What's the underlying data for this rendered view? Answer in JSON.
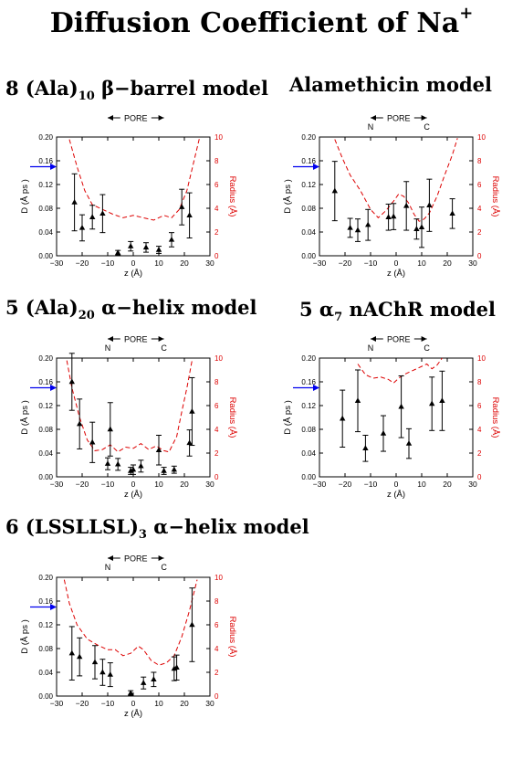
{
  "title": {
    "text": "Diffusion Coefficient of Na",
    "superscript": "+"
  },
  "panels": [
    {
      "key": "ala10",
      "title_parts": [
        "8 (Ala)",
        "10",
        "  β−barrel model"
      ],
      "pore_text": "PORE",
      "n_label": "",
      "c_label": ""
    },
    {
      "key": "alam",
      "title_parts": [
        "Alamethicin model",
        "",
        ""
      ],
      "pore_text": "PORE",
      "n_label": "N",
      "c_label": "C"
    },
    {
      "key": "ala20",
      "title_parts": [
        "5 (Ala)",
        "20",
        "  α−helix model"
      ],
      "pore_text": "PORE",
      "n_label": "N",
      "c_label": "C"
    },
    {
      "key": "nachr",
      "title_parts": [
        "5 α",
        "7",
        " nAChR model"
      ],
      "pore_text": "PORE",
      "n_label": "N",
      "c_label": "C"
    },
    {
      "key": "lssllsl",
      "title_parts": [
        "6 (LSSLLSL)",
        "3",
        " α−helix model"
      ],
      "pore_text": "PORE",
      "n_label": "N",
      "c_label": "C"
    }
  ],
  "axis_text": {
    "xlabel": "z (Å)",
    "ylabel_left": "D  (Å ps )",
    "ylabel_right": "Radius (Å)",
    "xticks": [
      "−30",
      "−20",
      "−10",
      "0",
      "10",
      "20",
      "30"
    ],
    "yticks_left": [
      "0.00",
      "0.04",
      "0.08",
      "0.12",
      "0.16",
      "0.20"
    ],
    "yticks_right": [
      "0",
      "2",
      "4",
      "6",
      "8",
      "10"
    ]
  },
  "colors": {
    "radius_curve": "#dd0000",
    "bulk_arrow": "#0000ee",
    "data": "#000000"
  },
  "chart_data": [
    {
      "type": "scatter",
      "panel": "ala10",
      "xlabel": "z (Å)",
      "ylabel": "D_z (Å² ps⁻¹)",
      "y2label": "Radius (Å)",
      "xlim": [
        -30,
        30
      ],
      "ylim": [
        0,
        0.2
      ],
      "y2lim": [
        0,
        10
      ],
      "bulk_marker_y": 0.15,
      "points": [
        {
          "x": -23,
          "y": 0.09,
          "err": 0.048
        },
        {
          "x": -20,
          "y": 0.047,
          "err": 0.022
        },
        {
          "x": -16,
          "y": 0.065,
          "err": 0.02
        },
        {
          "x": -12,
          "y": 0.071,
          "err": 0.032
        },
        {
          "x": -6,
          "y": 0.005,
          "err": 0.004
        },
        {
          "x": -1,
          "y": 0.016,
          "err": 0.008
        },
        {
          "x": 5,
          "y": 0.014,
          "err": 0.008
        },
        {
          "x": 10,
          "y": 0.01,
          "err": 0.006
        },
        {
          "x": 15,
          "y": 0.027,
          "err": 0.012
        },
        {
          "x": 19,
          "y": 0.082,
          "err": 0.03
        },
        {
          "x": 22,
          "y": 0.068,
          "err": 0.038
        }
      ],
      "radius_curve": [
        [
          -25,
          9.8
        ],
        [
          -22,
          7.5
        ],
        [
          -19,
          5.5
        ],
        [
          -16,
          4.3
        ],
        [
          -12,
          3.9
        ],
        [
          -8,
          3.5
        ],
        [
          -4,
          3.2
        ],
        [
          0,
          3.4
        ],
        [
          4,
          3.2
        ],
        [
          8,
          3.0
        ],
        [
          12,
          3.4
        ],
        [
          15,
          3.2
        ],
        [
          18,
          3.9
        ],
        [
          21,
          5.5
        ],
        [
          24,
          8.2
        ],
        [
          26,
          10
        ]
      ]
    },
    {
      "type": "scatter",
      "panel": "alam",
      "xlabel": "z (Å)",
      "ylabel": "D_z (Å² ps⁻¹)",
      "y2label": "Radius (Å)",
      "xlim": [
        -30,
        30
      ],
      "ylim": [
        0,
        0.2
      ],
      "y2lim": [
        0,
        10
      ],
      "bulk_marker_y": 0.15,
      "points": [
        {
          "x": -24,
          "y": 0.109,
          "err": 0.05
        },
        {
          "x": -18,
          "y": 0.047,
          "err": 0.016
        },
        {
          "x": -15,
          "y": 0.043,
          "err": 0.019
        },
        {
          "x": -11,
          "y": 0.052,
          "err": 0.026
        },
        {
          "x": -3,
          "y": 0.065,
          "err": 0.022
        },
        {
          "x": -1,
          "y": 0.066,
          "err": 0.022
        },
        {
          "x": 4,
          "y": 0.084,
          "err": 0.041
        },
        {
          "x": 8,
          "y": 0.045,
          "err": 0.017
        },
        {
          "x": 10,
          "y": 0.048,
          "err": 0.034
        },
        {
          "x": 13,
          "y": 0.085,
          "err": 0.044
        },
        {
          "x": 22,
          "y": 0.071,
          "err": 0.025
        }
      ],
      "radius_curve": [
        [
          -24,
          9.8
        ],
        [
          -21,
          8.2
        ],
        [
          -18,
          6.8
        ],
        [
          -14,
          5.5
        ],
        [
          -10,
          3.9
        ],
        [
          -7,
          3.2
        ],
        [
          -4,
          3.8
        ],
        [
          -1,
          4.6
        ],
        [
          1,
          5.2
        ],
        [
          3,
          5.0
        ],
        [
          5,
          4.4
        ],
        [
          7,
          3.5
        ],
        [
          9,
          2.9
        ],
        [
          11,
          3.1
        ],
        [
          13,
          3.6
        ],
        [
          16,
          5.0
        ],
        [
          19,
          6.8
        ],
        [
          22,
          8.5
        ],
        [
          24,
          9.9
        ]
      ]
    },
    {
      "type": "scatter",
      "panel": "ala20",
      "xlabel": "z (Å)",
      "ylabel": "D_z (Å² ps⁻¹)",
      "y2label": "Radius (Å)",
      "xlim": [
        -30,
        30
      ],
      "ylim": [
        0,
        0.2
      ],
      "y2lim": [
        0,
        10
      ],
      "bulk_marker_y": 0.15,
      "points": [
        {
          "x": -24,
          "y": 0.16,
          "err": 0.048
        },
        {
          "x": -21,
          "y": 0.089,
          "err": 0.042
        },
        {
          "x": -16,
          "y": 0.058,
          "err": 0.034
        },
        {
          "x": -10,
          "y": 0.022,
          "err": 0.01
        },
        {
          "x": -9,
          "y": 0.08,
          "err": 0.045
        },
        {
          "x": -6,
          "y": 0.021,
          "err": 0.01
        },
        {
          "x": -1,
          "y": 0.01,
          "err": 0.006
        },
        {
          "x": 0,
          "y": 0.012,
          "err": 0.008
        },
        {
          "x": 3,
          "y": 0.018,
          "err": 0.01
        },
        {
          "x": 10,
          "y": 0.045,
          "err": 0.025
        },
        {
          "x": 12,
          "y": 0.01,
          "err": 0.006
        },
        {
          "x": 16,
          "y": 0.012,
          "err": 0.006
        },
        {
          "x": 22,
          "y": 0.057,
          "err": 0.022
        },
        {
          "x": 23,
          "y": 0.11,
          "err": 0.057
        }
      ],
      "radius_curve": [
        [
          -26,
          9.8
        ],
        [
          -24,
          7.5
        ],
        [
          -21,
          5.0
        ],
        [
          -18,
          3.1
        ],
        [
          -15,
          2.2
        ],
        [
          -12,
          2.3
        ],
        [
          -9,
          2.7
        ],
        [
          -6,
          2.1
        ],
        [
          -3,
          2.5
        ],
        [
          0,
          2.4
        ],
        [
          3,
          2.8
        ],
        [
          6,
          2.3
        ],
        [
          9,
          2.6
        ],
        [
          12,
          2.2
        ],
        [
          14,
          2.1
        ],
        [
          17,
          3.4
        ],
        [
          19,
          5.5
        ],
        [
          21,
          7.5
        ],
        [
          23,
          9.8
        ]
      ]
    },
    {
      "type": "scatter",
      "panel": "nachr",
      "xlabel": "z (Å)",
      "ylabel": "D_z (Å² ps⁻¹)",
      "y2label": "Radius (Å)",
      "xlim": [
        -30,
        30
      ],
      "ylim": [
        0,
        0.2
      ],
      "y2lim": [
        0,
        10
      ],
      "bulk_marker_y": 0.15,
      "points": [
        {
          "x": -21,
          "y": 0.098,
          "err": 0.048
        },
        {
          "x": -15,
          "y": 0.128,
          "err": 0.052
        },
        {
          "x": -12,
          "y": 0.048,
          "err": 0.022
        },
        {
          "x": -5,
          "y": 0.073,
          "err": 0.03
        },
        {
          "x": 2,
          "y": 0.118,
          "err": 0.052
        },
        {
          "x": 5,
          "y": 0.056,
          "err": 0.025
        },
        {
          "x": 14,
          "y": 0.123,
          "err": 0.045
        },
        {
          "x": 18,
          "y": 0.128,
          "err": 0.05
        }
      ],
      "radius_curve": [
        [
          -15,
          9.5
        ],
        [
          -12,
          8.6
        ],
        [
          -9,
          8.3
        ],
        [
          -6,
          8.4
        ],
        [
          -3,
          8.2
        ],
        [
          -1,
          7.9
        ],
        [
          1,
          8.3
        ],
        [
          3,
          8.6
        ],
        [
          6,
          8.9
        ],
        [
          9,
          9.2
        ],
        [
          12,
          9.5
        ],
        [
          14,
          9.1
        ],
        [
          16,
          9.4
        ],
        [
          18,
          10
        ]
      ]
    },
    {
      "type": "scatter",
      "panel": "lssllsl",
      "xlabel": "z (Å)",
      "ylabel": "D_z (Å² ps⁻¹)",
      "y2label": "Radius (Å)",
      "xlim": [
        -30,
        30
      ],
      "ylim": [
        0,
        0.2
      ],
      "y2lim": [
        0,
        10
      ],
      "bulk_marker_y": 0.15,
      "points": [
        {
          "x": -24,
          "y": 0.072,
          "err": 0.045
        },
        {
          "x": -21,
          "y": 0.066,
          "err": 0.032
        },
        {
          "x": -15,
          "y": 0.057,
          "err": 0.028
        },
        {
          "x": -12,
          "y": 0.04,
          "err": 0.022
        },
        {
          "x": -9,
          "y": 0.036,
          "err": 0.02
        },
        {
          "x": -1,
          "y": 0.005,
          "err": 0.004
        },
        {
          "x": 4,
          "y": 0.022,
          "err": 0.01
        },
        {
          "x": 8,
          "y": 0.028,
          "err": 0.012
        },
        {
          "x": 16,
          "y": 0.046,
          "err": 0.02
        },
        {
          "x": 17,
          "y": 0.048,
          "err": 0.021
        },
        {
          "x": 23,
          "y": 0.12,
          "err": 0.062
        }
      ],
      "radius_curve": [
        [
          -27,
          9.8
        ],
        [
          -25,
          7.8
        ],
        [
          -22,
          6.0
        ],
        [
          -18,
          4.8
        ],
        [
          -14,
          4.3
        ],
        [
          -10,
          3.9
        ],
        [
          -7,
          3.9
        ],
        [
          -4,
          3.4
        ],
        [
          -1,
          3.6
        ],
        [
          2,
          4.2
        ],
        [
          4,
          3.9
        ],
        [
          7,
          3.0
        ],
        [
          10,
          2.6
        ],
        [
          13,
          2.8
        ],
        [
          16,
          3.4
        ],
        [
          19,
          5.0
        ],
        [
          22,
          7.2
        ],
        [
          25,
          9.8
        ]
      ]
    }
  ]
}
